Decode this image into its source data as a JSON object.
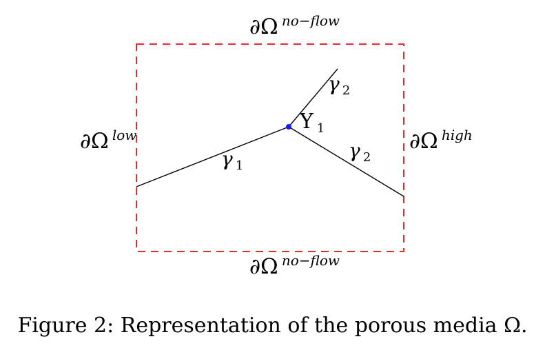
{
  "diagram": {
    "boundary_top": {
      "main": "∂Ω",
      "sup": "no−flow"
    },
    "boundary_bottom": {
      "main": "∂Ω",
      "sup": "no−flow"
    },
    "boundary_left": {
      "main": "∂Ω",
      "sup": "low"
    },
    "boundary_right": {
      "main": "∂Ω",
      "sup": "high"
    },
    "gamma1_label": {
      "main": "γ",
      "sub": "1"
    },
    "gamma2_upper_label": {
      "main": "γ",
      "sub": "2"
    },
    "gamma2_lower_label": {
      "main": "γ",
      "sub": "2"
    },
    "junction_label": {
      "main": "Υ",
      "sub": "1"
    },
    "colors": {
      "boundary": "#e32b2b",
      "fracture": "#000000",
      "junction": "#1a1aff"
    }
  },
  "caption": "Figure 2: Representation of the porous media Ω."
}
